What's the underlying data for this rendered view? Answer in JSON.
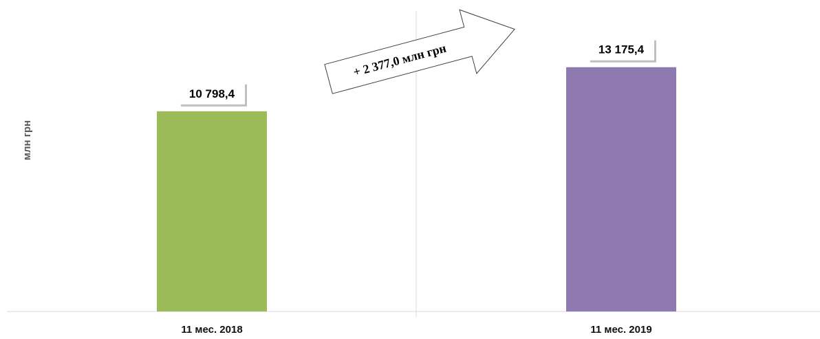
{
  "chart_data": {
    "type": "bar",
    "categories": [
      "11 мес. 2018",
      "11 мес. 2019"
    ],
    "values": [
      10798.4,
      13175.4
    ],
    "value_labels": [
      "10 798,4",
      "13 175,4"
    ],
    "colors": [
      "#9bbb59",
      "#8e79b0"
    ],
    "title": "",
    "xlabel": "",
    "ylabel": "млн грн",
    "ylim": [
      0,
      16800
    ],
    "grid": false,
    "annotation": "+ 2 377,0 млн грн"
  }
}
